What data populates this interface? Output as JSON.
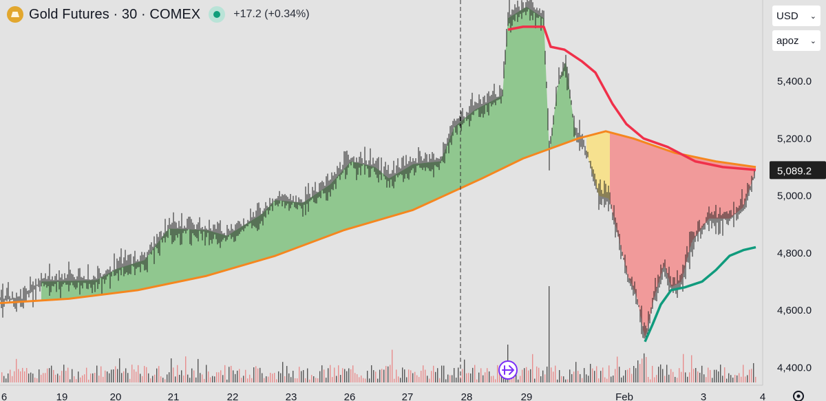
{
  "header": {
    "title": "Gold Futures · 30 · COMEX",
    "change": "+17.2 (+0.34%)",
    "currency": "USD",
    "unit_selector": "apoz",
    "colors": {
      "logo": "#e2a72e",
      "status": "#0f9e7a"
    }
  },
  "toolbar": {
    "goto_icon": "jump-to-realtime-icon",
    "settings_icon": "gear-icon"
  },
  "chart_data": {
    "type": "line",
    "y_range": [
      4350,
      5800
    ],
    "y_ticks": [
      "5,400.0",
      "5,200.0",
      "5,000.0",
      "4,800.0",
      "4,600.0",
      "4,400.0"
    ],
    "y_tick_values": [
      5400,
      5200,
      5000,
      4800,
      4600,
      4400
    ],
    "x_tick_labels": [
      "6",
      "19",
      "20",
      "21",
      "22",
      "23",
      "26",
      "27",
      "28",
      "29",
      "Feb",
      "3",
      "4"
    ],
    "last_price_label": "5,089.2",
    "last_price": 5089.2,
    "session_marker": "28",
    "price_points": [
      [
        "18",
        4640
      ],
      [
        "19",
        4680
      ],
      [
        "20",
        4740
      ],
      [
        "21",
        4880
      ],
      [
        "22",
        4940
      ],
      [
        "23",
        5000
      ],
      [
        "24",
        5060
      ],
      [
        "26",
        5120
      ],
      [
        "27",
        5150
      ],
      [
        "27.5",
        5280
      ],
      [
        "28",
        5330
      ],
      [
        "28.5",
        5500
      ],
      [
        "29",
        5640
      ],
      [
        "29.5",
        5200
      ],
      [
        "30",
        5180
      ],
      [
        "Feb",
        4750
      ],
      [
        "Feb.5",
        4580
      ],
      [
        "2",
        4720
      ],
      [
        "2.5",
        4860
      ],
      [
        "3",
        4960
      ],
      [
        "3.5",
        5000
      ],
      [
        "4",
        5089.2
      ]
    ],
    "series": [
      {
        "color": "#f5861f"
      },
      {
        "color": "#f0304a"
      },
      {
        "color": "#109b7d"
      }
    ],
    "fill_colors": {
      "above": "#8bc58a",
      "below": "#f19696",
      "cross": "#f7e08a"
    },
    "volume_colors": {
      "up": "#555555",
      "down": "#e88d8d"
    },
    "grid": false
  }
}
